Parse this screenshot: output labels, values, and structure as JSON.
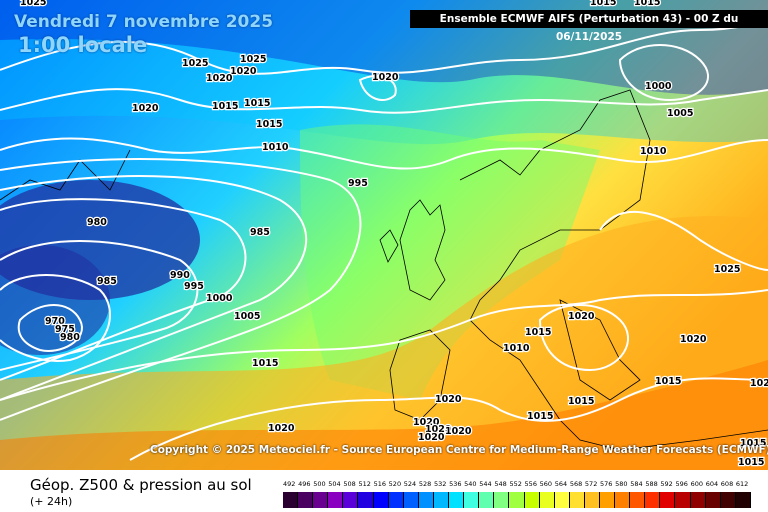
{
  "header": {
    "date": "Vendredi 7 novembre 2025",
    "time": "1:00 locale",
    "model_info": "Ensemble ECMWF AIFS  (Perturbation 43)  -  00 Z du 06/11/2025"
  },
  "copyright": "Copyright © 2025 Meteociel.fr - Source European Centre for Medium-Range Weather Forecasts (ECMWF)",
  "footer": {
    "title": "Géop. Z500 & pression au sol",
    "subtitle": "(+ 24h)"
  },
  "legend": {
    "values": [
      "492",
      "496",
      "500",
      "504",
      "508",
      "512",
      "516",
      "520",
      "524",
      "528",
      "532",
      "536",
      "540",
      "544",
      "548",
      "552",
      "556",
      "560",
      "564",
      "568",
      "572",
      "576",
      "580",
      "584",
      "588",
      "592",
      "596",
      "600",
      "604",
      "608",
      "612"
    ],
    "colors": [
      "#2a0030",
      "#4a0060",
      "#6a0090",
      "#8a00c0",
      "#5a00d8",
      "#2000e0",
      "#0000ff",
      "#0030ff",
      "#0060ff",
      "#0090ff",
      "#00b8ff",
      "#00e0ff",
      "#40ffe0",
      "#60ffb0",
      "#80ff80",
      "#a0ff40",
      "#c8ff00",
      "#e8ff20",
      "#ffff40",
      "#ffe030",
      "#ffc020",
      "#ffa000",
      "#ff8000",
      "#ff5800",
      "#ff3000",
      "#e00000",
      "#b80000",
      "#900000",
      "#680000",
      "#400000",
      "#200000"
    ]
  },
  "isobars": [
    "1025",
    "1025",
    "1020",
    "1025",
    "1020",
    "1020",
    "1015",
    "1015",
    "1020",
    "1015",
    "1010",
    "995",
    "980",
    "985",
    "990",
    "995",
    "1000",
    "985",
    "1005",
    "970",
    "975",
    "980",
    "1015",
    "1020",
    "1020",
    "1020",
    "1020",
    "1020",
    "1020",
    "1015",
    "1015",
    "1010",
    "1020",
    "1015",
    "1020",
    "1025",
    "1005",
    "1000",
    "1010",
    "1015",
    "1015",
    "1015",
    "1015",
    "1015",
    "1020"
  ]
}
